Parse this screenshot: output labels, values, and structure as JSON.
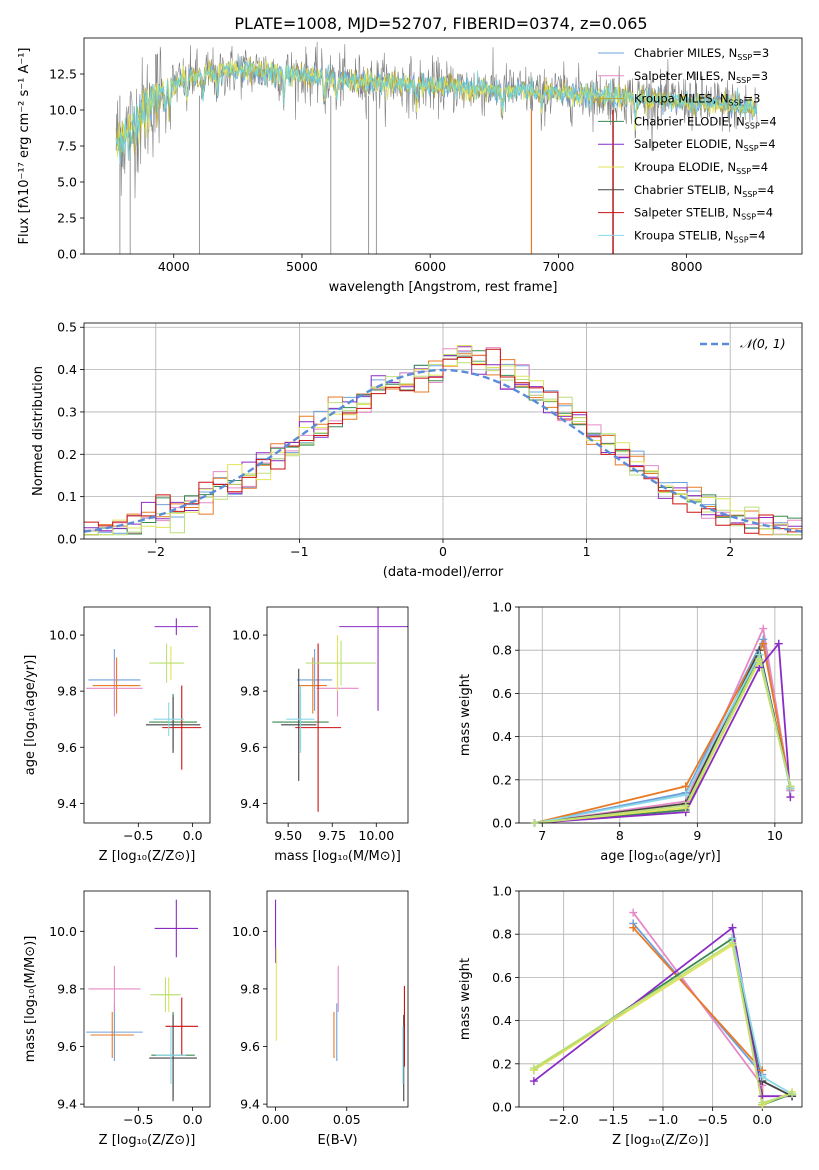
{
  "figure": {
    "title": "PLATE=1008, MJD=52707, FIBERID=0374, z=0.065",
    "spec_keys": [
      "chabrier_miles",
      "salpeter_miles",
      "kroupa_miles",
      "chabrier_elodie",
      "salpeter_elodie",
      "kroupa_elodie",
      "chabrier_stelib",
      "salpeter_stelib",
      "kroupa_stelib"
    ],
    "colors": {
      "chabrier_miles": "#6fa0dc",
      "salpeter_miles": "#e68ac6",
      "kroupa_miles": "#b8a434",
      "chabrier_elodie": "#3a8a50",
      "salpeter_elodie": "#8a2cc4",
      "kroupa_elodie": "#e0e45a",
      "chabrier_stelib": "#444444",
      "salpeter_stelib": "#cc1111",
      "kroupa_stelib": "#8ad8e8",
      "observed": "#808080",
      "model_main": "#6fd3d8",
      "orange": "#e87a25",
      "lightgreen": "#bde07a"
    }
  },
  "chart_data": [
    {
      "id": "spectrum",
      "type": "line",
      "xlabel": "wavelength [Angstrom, rest frame]",
      "ylabel": "Flux [fλ10⁻¹⁷ erg cm⁻² s⁻¹ A⁻¹]",
      "xlim": [
        3300,
        8900
      ],
      "ylim": [
        0,
        15
      ],
      "xticks": [
        4000,
        5000,
        6000,
        7000,
        8000
      ],
      "yticks": [
        0.0,
        2.5,
        5.0,
        7.5,
        10.0,
        12.5
      ],
      "continuum": {
        "x": [
          3550,
          3650,
          3750,
          3850,
          3950,
          4100,
          4300,
          4500,
          4700,
          5000,
          5300,
          5600,
          6000,
          6500,
          7000,
          7500,
          8000,
          8400,
          8550
        ],
        "y": [
          7.8,
          8.6,
          9.6,
          10.8,
          11.6,
          12.2,
          12.6,
          12.8,
          12.7,
          12.4,
          12.1,
          11.9,
          11.7,
          11.4,
          11.2,
          10.9,
          10.6,
          10.3,
          10.0
        ]
      },
      "legend": [
        {
          "key": "chabrier_miles",
          "label": "Chabrier MILES, N",
          "sub": "SSP",
          "suffix": "=3"
        },
        {
          "key": "salpeter_miles",
          "label": "Salpeter MILES, N",
          "sub": "SSP",
          "suffix": "=3"
        },
        {
          "key": "kroupa_miles",
          "label": "Kroupa MILES, N",
          "sub": "SSP",
          "suffix": "=3"
        },
        {
          "key": "chabrier_elodie",
          "label": "Chabrier ELODIE, N",
          "sub": "SSP",
          "suffix": "=4"
        },
        {
          "key": "salpeter_elodie",
          "label": "Salpeter ELODIE, N",
          "sub": "SSP",
          "suffix": "=4"
        },
        {
          "key": "kroupa_elodie",
          "label": "Kroupa ELODIE, N",
          "sub": "SSP",
          "suffix": "=4"
        },
        {
          "key": "chabrier_stelib",
          "label": "Chabrier STELIB, N",
          "sub": "SSP",
          "suffix": "=4"
        },
        {
          "key": "salpeter_stelib",
          "label": "Salpeter STELIB, N",
          "sub": "SSP",
          "suffix": "=4"
        },
        {
          "key": "kroupa_stelib",
          "label": "Kroupa STELIB, N",
          "sub": "SSP",
          "suffix": "=4"
        }
      ]
    },
    {
      "id": "residuals",
      "type": "step",
      "xlabel": "(data-model)/error",
      "ylabel": "Normed distribution",
      "xlim": [
        -2.5,
        2.5
      ],
      "ylim": [
        0,
        0.51
      ],
      "xticks": [
        -2,
        -1,
        0,
        1,
        2
      ],
      "yticks": [
        0.0,
        0.1,
        0.2,
        0.3,
        0.4,
        0.5
      ],
      "grid": true,
      "gaussian_label": "𝒩(0, 1)",
      "legend_position": "top-right",
      "bin_width": 0.1
    },
    {
      "id": "age_vs_Z",
      "type": "errorbar",
      "xlabel": "Z [log₁₀(Z/Z⊙)]",
      "ylabel": "age  [log₁₀(age/yr)]",
      "xlim": [
        -1.0,
        0.16
      ],
      "ylim": [
        9.33,
        10.1
      ],
      "xticks": [
        -0.5,
        0.0
      ],
      "yticks": [
        9.4,
        9.6,
        9.8,
        10.0
      ],
      "points": [
        {
          "key": "chabrier_miles",
          "x": -0.72,
          "y": 9.84,
          "ex": 0.24,
          "ey": 0.11
        },
        {
          "key": "salpeter_miles",
          "x": -0.72,
          "y": 9.81,
          "ex": 0.26,
          "ey": 0.1
        },
        {
          "key": "orange",
          "x": -0.7,
          "y": 9.82,
          "ex": 0.22,
          "ey": 0.1
        },
        {
          "key": "chabrier_elodie",
          "x": -0.18,
          "y": 9.69,
          "ex": 0.22,
          "ey": 0.1
        },
        {
          "key": "salpeter_elodie",
          "x": -0.15,
          "y": 10.03,
          "ex": 0.2,
          "ey": 0.03
        },
        {
          "key": "kroupa_elodie",
          "x": -0.2,
          "y": 9.9,
          "ex": 0.1,
          "ey": 0.06
        },
        {
          "key": "chabrier_stelib",
          "x": -0.18,
          "y": 9.68,
          "ex": 0.25,
          "ey": 0.1
        },
        {
          "key": "salpeter_stelib",
          "x": -0.1,
          "y": 9.67,
          "ex": 0.18,
          "ey": 0.15
        },
        {
          "key": "kroupa_stelib",
          "x": -0.22,
          "y": 9.7,
          "ex": 0.14,
          "ey": 0.06
        },
        {
          "key": "lightgreen",
          "x": -0.24,
          "y": 9.9,
          "ex": 0.16,
          "ey": 0.07
        }
      ]
    },
    {
      "id": "age_vs_mass",
      "type": "errorbar",
      "xlabel": "mass [log₁₀(M/M⊙)]",
      "ylabel": "",
      "xlim": [
        9.38,
        10.18
      ],
      "ylim": [
        9.33,
        10.1
      ],
      "xticks": [
        9.5,
        9.75,
        10.0
      ],
      "yticks": [
        9.4,
        9.6,
        9.8,
        10.0
      ],
      "points": [
        {
          "key": "chabrier_miles",
          "x": 9.65,
          "y": 9.84,
          "ex": 0.1,
          "ey": 0.11
        },
        {
          "key": "salpeter_miles",
          "x": 9.78,
          "y": 9.81,
          "ex": 0.12,
          "ey": 0.1
        },
        {
          "key": "orange",
          "x": 9.64,
          "y": 9.82,
          "ex": 0.08,
          "ey": 0.1
        },
        {
          "key": "chabrier_elodie",
          "x": 9.57,
          "y": 9.69,
          "ex": 0.16,
          "ey": 0.1
        },
        {
          "key": "salpeter_elodie",
          "x": 10.01,
          "y": 10.03,
          "ex": 0.22,
          "ey": 0.3
        },
        {
          "key": "kroupa_elodie",
          "x": 9.78,
          "y": 9.9,
          "ex": 0.12,
          "ey": 0.1
        },
        {
          "key": "chabrier_stelib",
          "x": 9.56,
          "y": 9.68,
          "ex": 0.1,
          "ey": 0.2
        },
        {
          "key": "salpeter_stelib",
          "x": 9.67,
          "y": 9.67,
          "ex": 0.13,
          "ey": 0.3
        },
        {
          "key": "kroupa_stelib",
          "x": 9.57,
          "y": 9.7,
          "ex": 0.08,
          "ey": 0.12
        },
        {
          "key": "lightgreen",
          "x": 9.8,
          "y": 9.9,
          "ex": 0.2,
          "ey": 0.08
        }
      ]
    },
    {
      "id": "weight_vs_age",
      "type": "line",
      "xlabel": "age  [log₁₀(age/yr)]",
      "ylabel": "mass weight",
      "xlim": [
        6.7,
        10.35
      ],
      "ylim": [
        0,
        1.0
      ],
      "xticks": [
        7,
        8,
        9,
        10
      ],
      "yticks": [
        0.0,
        0.2,
        0.4,
        0.6,
        0.8,
        1.0
      ],
      "grid": true,
      "series": [
        {
          "key": "chabrier_miles",
          "x": [
            6.9,
            8.85,
            9.85,
            10.2
          ],
          "y": [
            0.0,
            0.14,
            0.85,
            0.15
          ]
        },
        {
          "key": "salpeter_miles",
          "x": [
            6.9,
            8.85,
            9.85,
            10.2
          ],
          "y": [
            0.0,
            0.1,
            0.9,
            0.15
          ]
        },
        {
          "key": "orange",
          "x": [
            6.9,
            8.85,
            9.85,
            10.2
          ],
          "y": [
            0.0,
            0.17,
            0.83,
            0.16
          ]
        },
        {
          "key": "chabrier_elodie",
          "x": [
            6.9,
            8.85,
            9.8,
            10.2
          ],
          "y": [
            0.0,
            0.06,
            0.78,
            0.17
          ]
        },
        {
          "key": "salpeter_elodie",
          "x": [
            6.9,
            8.85,
            9.8,
            10.05,
            10.2
          ],
          "y": [
            0.0,
            0.05,
            0.72,
            0.83,
            0.12
          ]
        },
        {
          "key": "kroupa_elodie",
          "x": [
            6.9,
            8.85,
            9.8,
            10.2
          ],
          "y": [
            0.0,
            0.07,
            0.75,
            0.17
          ]
        },
        {
          "key": "chabrier_stelib",
          "x": [
            6.9,
            8.85,
            9.8,
            10.2
          ],
          "y": [
            0.0,
            0.09,
            0.8,
            0.16
          ]
        },
        {
          "key": "kroupa_stelib",
          "x": [
            6.9,
            8.85,
            9.8,
            10.2
          ],
          "y": [
            0.0,
            0.13,
            0.78,
            0.16
          ]
        },
        {
          "key": "lightgreen",
          "x": [
            6.9,
            8.85,
            9.8,
            10.2
          ],
          "y": [
            0.0,
            0.08,
            0.76,
            0.17
          ]
        }
      ]
    },
    {
      "id": "mass_vs_Z",
      "type": "errorbar",
      "xlabel": "Z [log₁₀(Z/Z⊙)]",
      "ylabel": "mass [log₁₀(M/M⊙)]",
      "xlim": [
        -1.0,
        0.16
      ],
      "ylim": [
        9.39,
        10.14
      ],
      "xticks": [
        -0.5,
        0.0
      ],
      "yticks": [
        9.4,
        9.6,
        9.8,
        10.0
      ],
      "points": [
        {
          "key": "chabrier_miles",
          "x": -0.72,
          "y": 9.65,
          "ex": 0.26,
          "ey": 0.1
        },
        {
          "key": "salpeter_miles",
          "x": -0.72,
          "y": 9.8,
          "ex": 0.24,
          "ey": 0.08
        },
        {
          "key": "orange",
          "x": -0.74,
          "y": 9.64,
          "ex": 0.2,
          "ey": 0.08
        },
        {
          "key": "chabrier_elodie",
          "x": -0.18,
          "y": 9.57,
          "ex": 0.2,
          "ey": 0.15
        },
        {
          "key": "salpeter_elodie",
          "x": -0.15,
          "y": 10.01,
          "ex": 0.2,
          "ey": 0.1
        },
        {
          "key": "kroupa_elodie",
          "x": -0.22,
          "y": 9.78,
          "ex": 0.1,
          "ey": 0.06
        },
        {
          "key": "chabrier_stelib",
          "x": -0.18,
          "y": 9.56,
          "ex": 0.22,
          "ey": 0.15
        },
        {
          "key": "salpeter_stelib",
          "x": -0.1,
          "y": 9.67,
          "ex": 0.15,
          "ey": 0.1
        },
        {
          "key": "kroupa_stelib",
          "x": -0.2,
          "y": 9.57,
          "ex": 0.14,
          "ey": 0.1
        },
        {
          "key": "lightgreen",
          "x": -0.25,
          "y": 9.78,
          "ex": 0.14,
          "ey": 0.06
        }
      ]
    },
    {
      "id": "mass_vs_ebv",
      "type": "errorbar",
      "xlabel": "E(B-V)",
      "ylabel": "",
      "xlim": [
        -0.006,
        0.093
      ],
      "ylim": [
        9.39,
        10.14
      ],
      "xticks": [
        0.0,
        0.05
      ],
      "yticks": [
        9.4,
        9.6,
        9.8,
        10.0
      ],
      "points": [
        {
          "key": "chabrier_miles",
          "x": 0.043,
          "y": 9.65,
          "ex": 0.0,
          "ey": 0.1
        },
        {
          "key": "salpeter_miles",
          "x": 0.044,
          "y": 9.8,
          "ex": 0.0,
          "ey": 0.08
        },
        {
          "key": "orange",
          "x": 0.041,
          "y": 9.64,
          "ex": 0.0,
          "ey": 0.08
        },
        {
          "key": "salpeter_elodie",
          "x": 0.0,
          "y": 10.0,
          "ex": 0.0,
          "ey": 0.11
        },
        {
          "key": "kroupa_elodie",
          "x": 0.0005,
          "y": 9.78,
          "ex": 0.0,
          "ey": 0.16
        },
        {
          "key": "chabrier_stelib",
          "x": 0.09,
          "y": 9.56,
          "ex": 0.0,
          "ey": 0.15
        },
        {
          "key": "salpeter_stelib",
          "x": 0.0905,
          "y": 9.67,
          "ex": 0.0,
          "ey": 0.14
        },
        {
          "key": "kroupa_stelib",
          "x": 0.0895,
          "y": 9.57,
          "ex": 0.0,
          "ey": 0.1
        }
      ]
    },
    {
      "id": "weight_vs_Z",
      "type": "line",
      "xlabel": "Z [log₁₀(Z/Z⊙)]",
      "ylabel": "mass weight",
      "xlim": [
        -2.45,
        0.4
      ],
      "ylim": [
        0,
        1.0
      ],
      "xticks": [
        -2.0,
        -1.5,
        -1.0,
        -0.5,
        0.0
      ],
      "yticks": [
        0.0,
        0.2,
        0.4,
        0.6,
        0.8,
        1.0
      ],
      "grid": true,
      "series": [
        {
          "key": "chabrier_miles",
          "x": [
            -1.3,
            0.0,
            0.0
          ],
          "y": [
            0.85,
            0.15,
            0.01
          ]
        },
        {
          "key": "salpeter_miles",
          "x": [
            -1.3,
            0.0,
            0.0
          ],
          "y": [
            0.9,
            0.1,
            0.01
          ]
        },
        {
          "key": "orange",
          "x": [
            -1.3,
            0.0,
            0.0
          ],
          "y": [
            0.83,
            0.17,
            0.01
          ]
        },
        {
          "key": "chabrier_elodie",
          "x": [
            -2.3,
            -0.3,
            0.0,
            0.3
          ],
          "y": [
            0.17,
            0.78,
            0.01,
            0.06
          ]
        },
        {
          "key": "salpeter_elodie",
          "x": [
            -2.3,
            -0.3,
            0.0,
            0.3
          ],
          "y": [
            0.12,
            0.83,
            0.05,
            0.05
          ]
        },
        {
          "key": "kroupa_elodie",
          "x": [
            -2.3,
            -0.3,
            0.0,
            0.3
          ],
          "y": [
            0.17,
            0.75,
            0.01,
            0.07
          ]
        },
        {
          "key": "chabrier_stelib",
          "x": [
            -0.3,
            0.0,
            0.3
          ],
          "y": [
            0.78,
            0.12,
            0.05
          ]
        },
        {
          "key": "kroupa_stelib",
          "x": [
            -0.3,
            0.0,
            0.3
          ],
          "y": [
            0.78,
            0.14,
            0.06
          ]
        },
        {
          "key": "lightgreen",
          "x": [
            -2.3,
            -0.3,
            0.0,
            0.3
          ],
          "y": [
            0.18,
            0.76,
            0.02,
            0.06
          ]
        }
      ]
    }
  ]
}
